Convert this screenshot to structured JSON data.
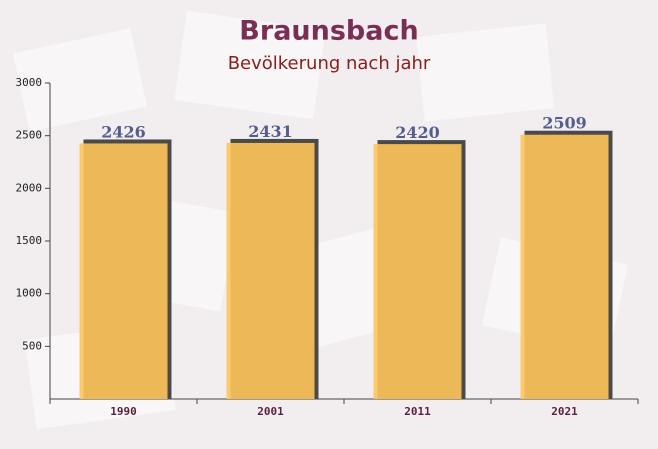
{
  "chart_data": {
    "type": "bar",
    "title": "Braunsbach",
    "subtitle": "Bevölkerung nach jahr",
    "categories": [
      "1990",
      "2001",
      "2011",
      "2021"
    ],
    "values": [
      2426,
      2431,
      2420,
      2509
    ],
    "color": "#ffc55a",
    "ylim": [
      0,
      3000
    ],
    "yticks": [
      500,
      1000,
      1500,
      2000,
      2500,
      3000
    ]
  }
}
